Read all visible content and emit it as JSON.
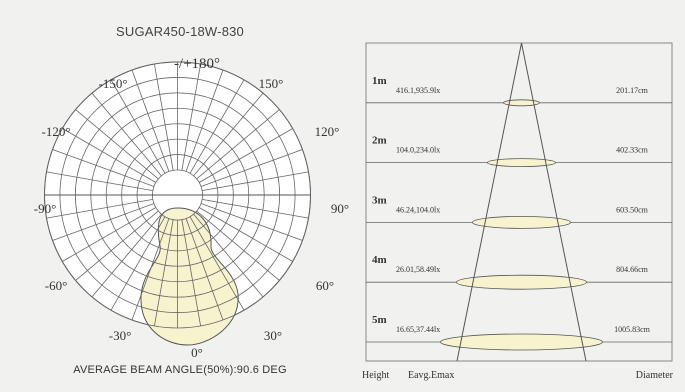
{
  "polar": {
    "title": "SUGAR450-18W-830",
    "beam_caption": "AVERAGE BEAM ANGLE(50%):90.6 DEG",
    "angle_labels": [
      "-/+180°",
      "150°",
      "120°",
      "90°",
      "60°",
      "30°",
      "0°",
      "-30°",
      "-60°",
      "-90°",
      "-120°",
      "-150°"
    ],
    "lobe_color": "#f7f3cf"
  },
  "cone": {
    "rows": [
      {
        "height": "1m",
        "eavg_emax": "416.1,935.9lx",
        "diameter": "201.17cm"
      },
      {
        "height": "2m",
        "eavg_emax": "104.0,234.0lx",
        "diameter": "402.33cm"
      },
      {
        "height": "3m",
        "eavg_emax": "46.24,104.0lx",
        "diameter": "603.50cm"
      },
      {
        "height": "4m",
        "eavg_emax": "26.01,58.49lx",
        "diameter": "804.66cm"
      },
      {
        "height": "5m",
        "eavg_emax": "16.65,37.44lx",
        "diameter": "1005.83cm"
      }
    ],
    "footer": {
      "height_label": "Height",
      "eavg_label": "Eavg.Emax",
      "diameter_label": "Diameter"
    },
    "ellipse_color": "#f7f3cf"
  }
}
